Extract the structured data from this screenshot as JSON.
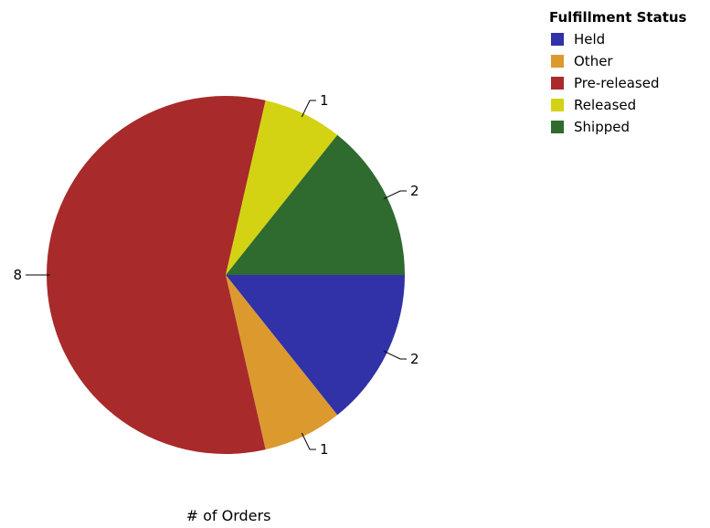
{
  "chart_data": {
    "type": "pie",
    "xlabel": "# of Orders",
    "legend_title": "Fulfillment Status",
    "legend_position": "top-right",
    "categories": [
      "Held",
      "Other",
      "Pre-released",
      "Released",
      "Shipped"
    ],
    "values": [
      2,
      1,
      8,
      1,
      2
    ],
    "colors": [
      "#3131a8",
      "#dc9a2e",
      "#a82a2a",
      "#d3d313",
      "#2f6a2f"
    ]
  }
}
